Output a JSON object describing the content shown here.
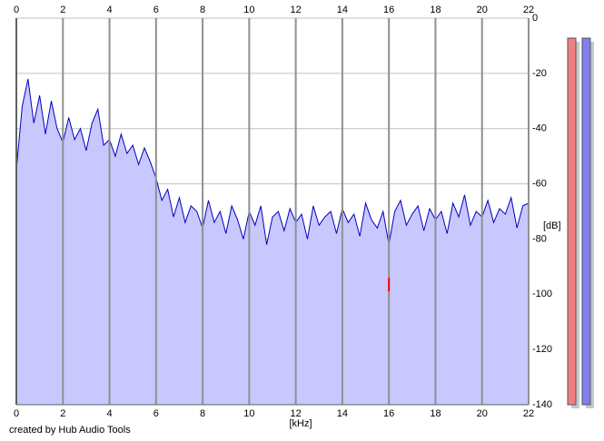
{
  "chart_data": {
    "type": "line",
    "x_label": "[kHz]",
    "y_label": "[dB]",
    "credit": "created by Hub Audio Tools",
    "x": [
      0,
      0.25,
      0.5,
      0.75,
      1,
      1.25,
      1.5,
      1.75,
      2,
      2.25,
      2.5,
      2.75,
      3,
      3.25,
      3.5,
      3.75,
      4,
      4.25,
      4.5,
      4.75,
      5,
      5.25,
      5.5,
      5.75,
      6,
      6.25,
      6.5,
      6.75,
      7,
      7.25,
      7.5,
      7.75,
      8,
      8.25,
      8.5,
      8.75,
      9,
      9.25,
      9.5,
      9.75,
      10,
      10.25,
      10.5,
      10.75,
      11,
      11.25,
      11.5,
      11.75,
      12,
      12.25,
      12.5,
      12.75,
      13,
      13.25,
      13.5,
      13.75,
      14,
      14.25,
      14.5,
      14.75,
      15,
      15.25,
      15.5,
      15.75,
      16,
      16.25,
      16.5,
      16.75,
      17,
      17.25,
      17.5,
      17.75,
      18,
      18.25,
      18.5,
      18.75,
      19,
      19.25,
      19.5,
      19.75,
      20,
      20.25,
      20.5,
      20.75,
      21,
      21.25,
      21.5,
      21.75,
      22
    ],
    "series": [
      {
        "color": "#0000c0",
        "fill": "#c8c8ff",
        "values": [
          -55,
          -32,
          -22,
          -38,
          -28,
          -42,
          -30,
          -40,
          -45,
          -36,
          -44,
          -40,
          -48,
          -38,
          -33,
          -46,
          -44,
          -50,
          -42,
          -49,
          -46,
          -53,
          -47,
          -52,
          -58,
          -66,
          -62,
          -72,
          -65,
          -74,
          -68,
          -70,
          -76,
          -66,
          -74,
          -70,
          -78,
          -68,
          -73,
          -80,
          -70,
          -75,
          -68,
          -82,
          -72,
          -70,
          -77,
          -69,
          -74,
          -71,
          -80,
          -68,
          -75,
          -72,
          -70,
          -78,
          -69,
          -74,
          -71,
          -79,
          -67,
          -73,
          -76,
          -70,
          -82,
          -70,
          -66,
          -75,
          -71,
          -68,
          -77,
          -69,
          -73,
          -70,
          -78,
          -67,
          -72,
          -64,
          -75,
          -70,
          -72,
          -66,
          -74,
          -69,
          -71,
          -65,
          -76,
          -68,
          -67
        ]
      }
    ],
    "marker": {
      "x": 16,
      "y": [
        -94,
        -99
      ],
      "color": "#ff0000"
    },
    "xlim": [
      0,
      22
    ],
    "ylim": [
      -140,
      0
    ],
    "xticks": [
      0,
      2,
      4,
      6,
      8,
      10,
      12,
      14,
      16,
      18,
      20,
      22
    ],
    "yticks": [
      0,
      -20,
      -40,
      -60,
      -80,
      -100,
      -120,
      -140
    ],
    "grid": true
  }
}
